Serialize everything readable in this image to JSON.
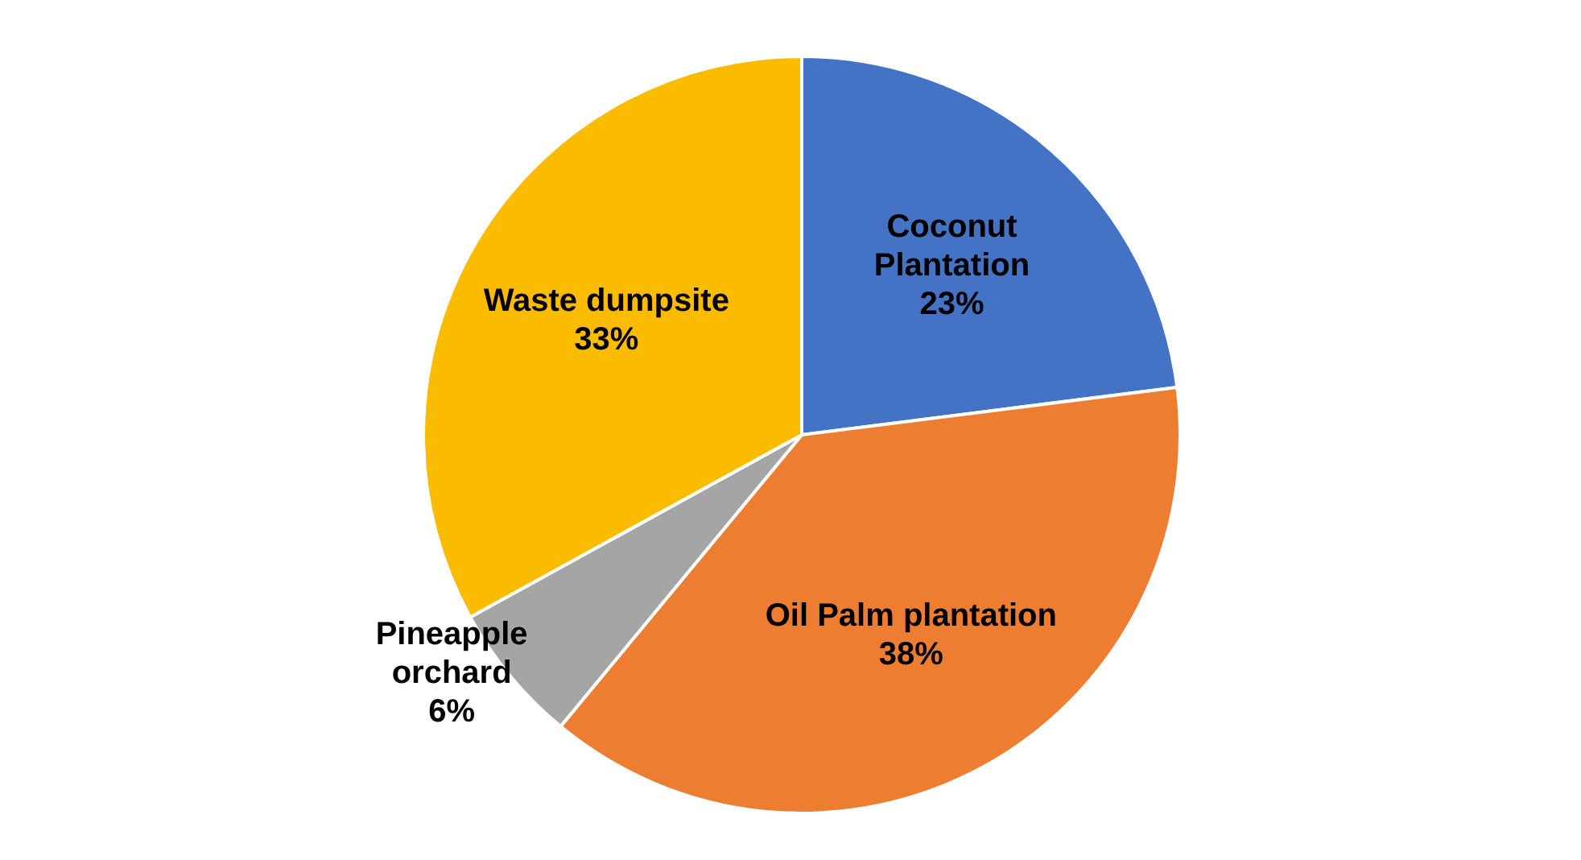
{
  "chart_data": {
    "type": "pie",
    "categories": [
      "Coconut Plantation",
      "Oil Palm plantation",
      "Pineapple orchard",
      "Waste dumpsite"
    ],
    "values": [
      23,
      38,
      6,
      33
    ],
    "colors": [
      "#4472c4",
      "#ed7d31",
      "#a5a5a5",
      "#fbbc00"
    ],
    "value_labels": [
      "23%",
      "38%",
      "6%",
      "33%"
    ]
  }
}
